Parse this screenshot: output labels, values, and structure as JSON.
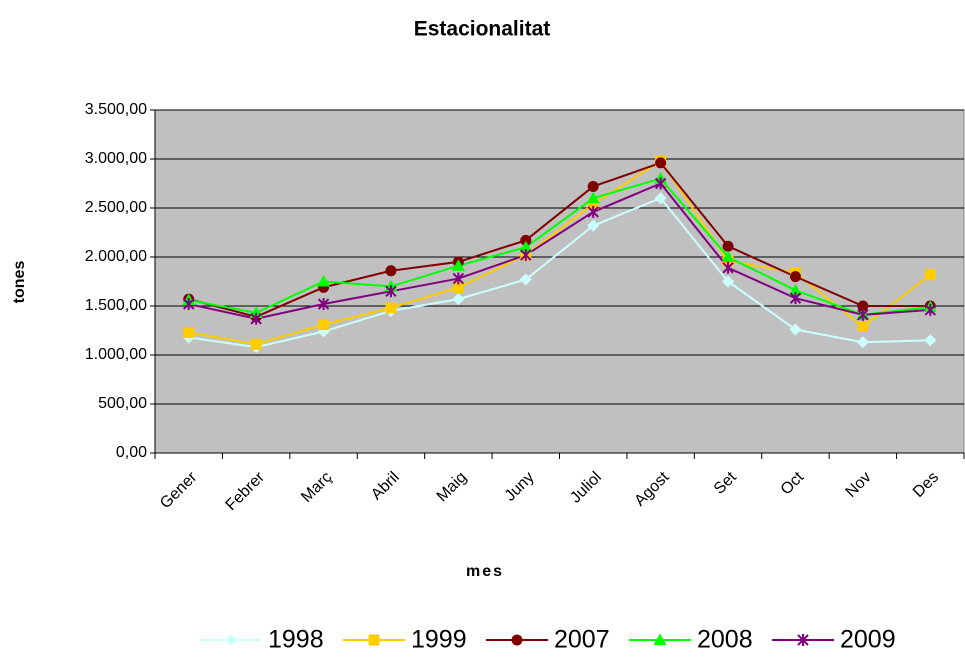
{
  "chart_data": {
    "type": "line",
    "title": "Estacionalitat",
    "x_label": "mes",
    "y_label": "tones",
    "categories": [
      "Gener",
      "Febrer",
      "Març",
      "Abril",
      "Maig",
      "Juny",
      "Juliol",
      "Agost",
      "Set",
      "Oct",
      "Nov",
      "Des"
    ],
    "series": [
      {
        "name": "1998",
        "color": "#ccffff",
        "marker": "diamond",
        "values": [
          1180,
          1080,
          1240,
          1450,
          1570,
          1770,
          2320,
          2600,
          1750,
          1260,
          1130,
          1150
        ]
      },
      {
        "name": "1999",
        "color": "#ffcc00",
        "marker": "square",
        "values": [
          1230,
          1110,
          1310,
          1480,
          1690,
          2020,
          2540,
          2980,
          1960,
          1840,
          1290,
          1820
        ]
      },
      {
        "name": "2007",
        "color": "#800000",
        "marker": "circle",
        "values": [
          1570,
          1390,
          1690,
          1860,
          1950,
          2170,
          2720,
          2960,
          2110,
          1800,
          1500,
          1500
        ]
      },
      {
        "name": "2008",
        "color": "#00ff00",
        "marker": "triangle",
        "values": [
          1560,
          1430,
          1750,
          1700,
          1910,
          2100,
          2600,
          2800,
          2000,
          1660,
          1410,
          1490
        ]
      },
      {
        "name": "2009",
        "color": "#800080",
        "marker": "star",
        "values": [
          1520,
          1370,
          1520,
          1650,
          1780,
          2020,
          2460,
          2750,
          1890,
          1580,
          1410,
          1460
        ]
      }
    ],
    "ylim": [
      0,
      3500
    ],
    "yticks": [
      {
        "value": 0,
        "label": "0,00"
      },
      {
        "value": 500,
        "label": "500,00"
      },
      {
        "value": 1000,
        "label": "1.000,00"
      },
      {
        "value": 1500,
        "label": "1.500,00"
      },
      {
        "value": 2000,
        "label": "2.000,00"
      },
      {
        "value": 2500,
        "label": "2.500,00"
      },
      {
        "value": 3000,
        "label": "3.000,00"
      },
      {
        "value": 3500,
        "label": "3.500,00"
      }
    ],
    "grid": true,
    "plot_background": "#c0c0c0",
    "legend": "bottom"
  }
}
